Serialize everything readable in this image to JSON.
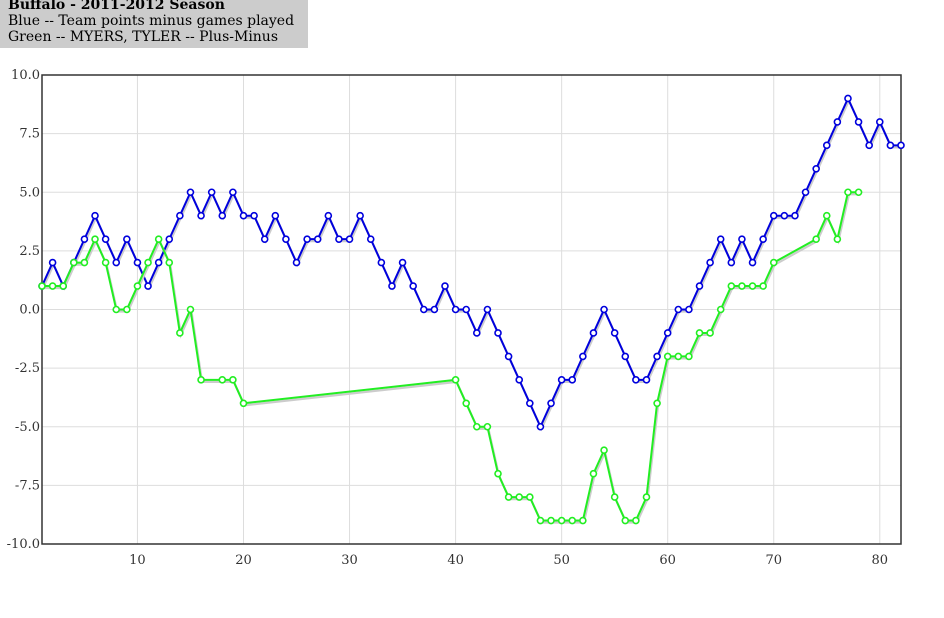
{
  "header": {
    "title": "Buffalo - 2011-2012 Season",
    "line1": "Blue -- Team points minus games played",
    "line2": "Green -- MYERS, TYLER -- Plus-Minus"
  },
  "colors": {
    "blue": "#0000dd",
    "green": "#22ee22",
    "grid": "#dddddd",
    "axis": "#333333"
  },
  "chart_data": {
    "type": "line",
    "title": "Buffalo - 2011-2012 Season",
    "xlabel": "",
    "ylabel": "",
    "xlim": [
      1,
      82
    ],
    "ylim": [
      -10,
      10
    ],
    "grid": true,
    "xticks": [
      10,
      20,
      30,
      40,
      50,
      60,
      70,
      80
    ],
    "yticks": [
      -10,
      -7.5,
      -5,
      -2.5,
      0,
      2.5,
      5,
      7.5,
      10
    ],
    "ytick_labels": [
      "-10.0",
      "-7.5",
      "-5.0",
      "-2.5",
      "0.0",
      "2.5",
      "5.0",
      "7.5",
      "10.0"
    ],
    "series": [
      {
        "name": "Team points minus games played",
        "color": "#0000dd",
        "x": [
          1,
          2,
          3,
          4,
          5,
          6,
          7,
          8,
          9,
          10,
          11,
          12,
          13,
          14,
          15,
          16,
          17,
          18,
          19,
          20,
          21,
          22,
          23,
          24,
          25,
          26,
          27,
          28,
          29,
          30,
          31,
          32,
          33,
          34,
          35,
          36,
          37,
          38,
          39,
          40,
          41,
          42,
          43,
          44,
          45,
          46,
          47,
          48,
          49,
          50,
          51,
          52,
          53,
          54,
          55,
          56,
          57,
          58,
          59,
          60,
          61,
          62,
          63,
          64,
          65,
          66,
          67,
          68,
          69,
          70,
          71,
          72,
          73,
          74,
          75,
          76,
          77,
          78,
          79,
          80,
          81,
          82
        ],
        "values": [
          1,
          2,
          1,
          2,
          3,
          4,
          3,
          2,
          3,
          2,
          1,
          2,
          3,
          4,
          5,
          4,
          5,
          4,
          5,
          4,
          4,
          3,
          4,
          3,
          2,
          3,
          3,
          4,
          3,
          3,
          4,
          3,
          2,
          1,
          2,
          1,
          0,
          0,
          1,
          0,
          0,
          -1,
          0,
          -1,
          -2,
          -3,
          -4,
          -5,
          -4,
          -3,
          -3,
          -2,
          -1,
          0,
          -1,
          -2,
          -3,
          -3,
          -2,
          -1,
          0,
          0,
          1,
          2,
          3,
          2,
          3,
          2,
          3,
          4,
          4,
          4,
          5,
          6,
          7,
          8,
          9,
          8,
          7,
          8,
          7,
          7
        ]
      },
      {
        "name": "MYERS, TYLER -- Plus-Minus",
        "color": "#22ee22",
        "x": [
          1,
          2,
          3,
          4,
          5,
          6,
          7,
          8,
          9,
          10,
          11,
          12,
          13,
          14,
          15,
          16,
          18,
          19,
          20,
          40,
          41,
          42,
          43,
          44,
          45,
          46,
          47,
          48,
          49,
          50,
          51,
          52,
          53,
          54,
          55,
          56,
          57,
          58,
          59,
          60,
          61,
          62,
          63,
          64,
          65,
          66,
          67,
          68,
          69,
          70,
          74,
          75,
          76,
          77,
          78
        ],
        "values": [
          1,
          1,
          1,
          2,
          2,
          3,
          2,
          0,
          0,
          1,
          2,
          3,
          2,
          -1,
          0,
          -3,
          -3,
          -3,
          -4,
          -3,
          -4,
          -5,
          -5,
          -7,
          -8,
          -8,
          -8,
          -9,
          -9,
          -9,
          -9,
          -9,
          -7,
          -6,
          -8,
          -9,
          -9,
          -8,
          -4,
          -2,
          -2,
          -2,
          -1,
          -1,
          0,
          1,
          1,
          1,
          1,
          2,
          3,
          4,
          3,
          5,
          5
        ]
      }
    ]
  }
}
